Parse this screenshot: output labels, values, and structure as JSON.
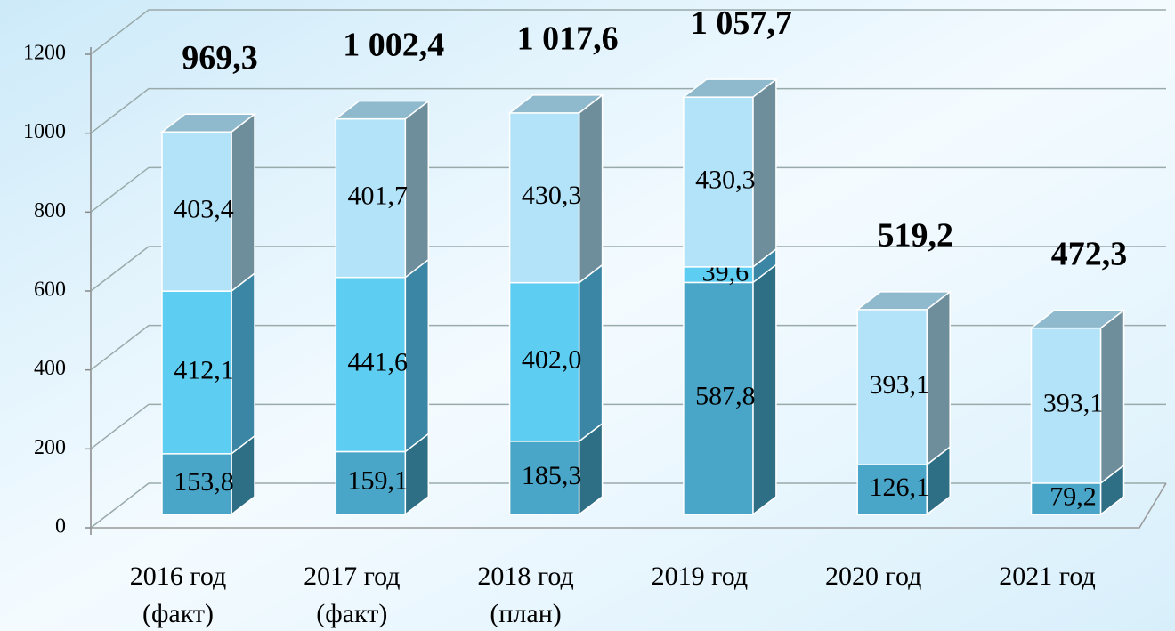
{
  "chart_data": {
    "type": "bar3d_stacked",
    "categories": [
      [
        "2016 год",
        "(факт)"
      ],
      [
        "2017 год",
        "(факт)"
      ],
      [
        "2018 год",
        "(план)"
      ],
      [
        "2019 год"
      ],
      [
        "2020 год"
      ],
      [
        "2021 год"
      ]
    ],
    "series": [
      {
        "color": "#4aa6c8",
        "side": "#2e6f86",
        "values": [
          153.8,
          159.1,
          185.3,
          587.8,
          126.1,
          79.2
        ],
        "value_labels": [
          "153,8",
          "159,1",
          "185,3",
          "587,8",
          "126,1",
          "79,2"
        ]
      },
      {
        "color": "#5ecdf2",
        "side": "#3a86a4",
        "values": [
          412.1,
          441.6,
          402.0,
          39.6,
          null,
          null
        ],
        "value_labels": [
          "412,1",
          "441,6",
          "402,0",
          "39,6",
          null,
          null
        ]
      },
      {
        "color": "#b3e3f8",
        "side": "#6f8e9c",
        "values": [
          403.4,
          401.7,
          430.3,
          430.3,
          393.1,
          393.1
        ],
        "value_labels": [
          "403,4",
          "401,7",
          "430,3",
          "430,3",
          "393,1",
          "393,1"
        ]
      }
    ],
    "totals": {
      "values": [
        969.3,
        1002.4,
        1017.6,
        1057.7,
        519.2,
        472.3
      ],
      "value_labels": [
        "969,3",
        "1 002,4",
        "1 017,6",
        "1 057,7",
        "519,2",
        "472,3"
      ]
    },
    "ylim": [
      0,
      1200
    ],
    "yticks": [
      0,
      200,
      400,
      600,
      800,
      1000,
      1200
    ],
    "grid": true
  }
}
